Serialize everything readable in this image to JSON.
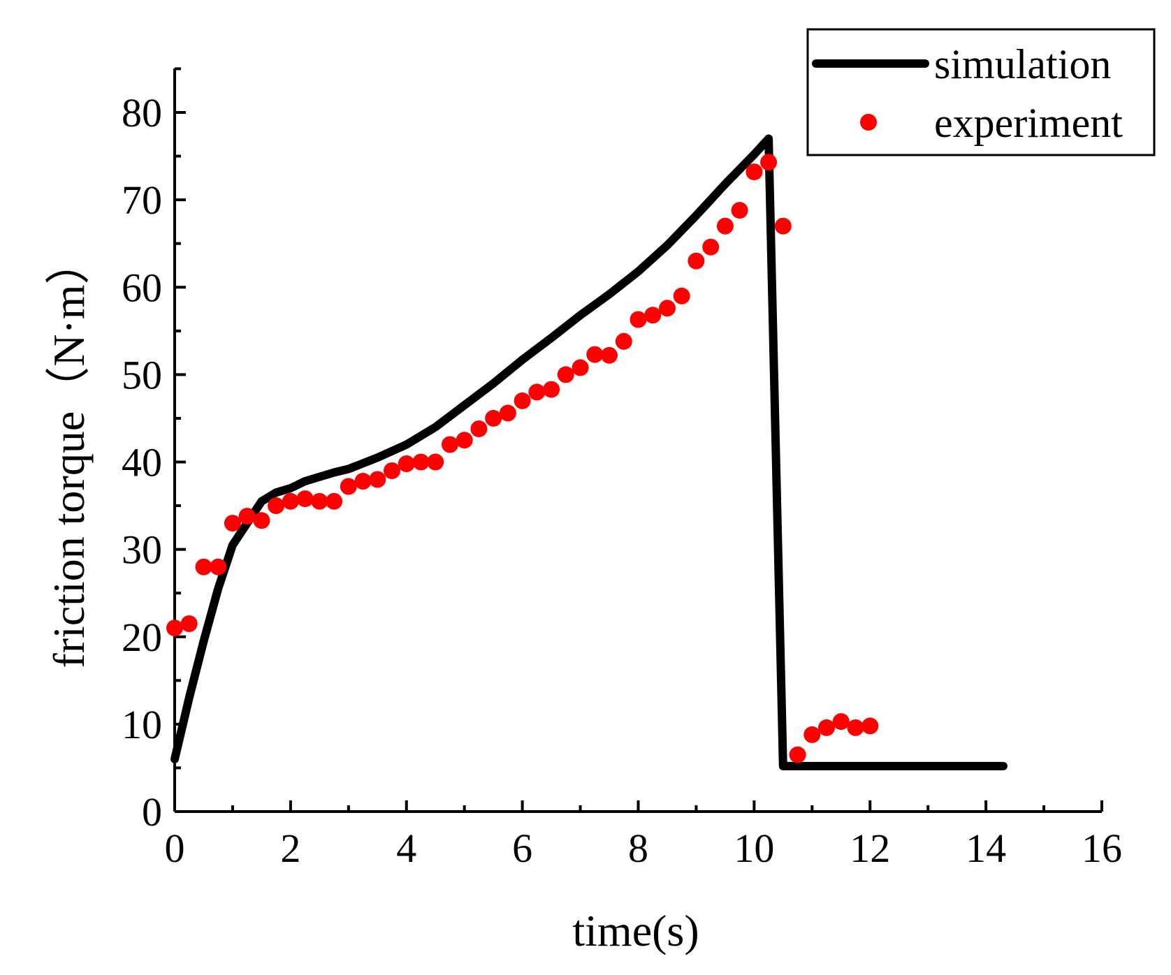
{
  "chart_data": {
    "type": "line",
    "title": "",
    "xlabel": "time(s)",
    "ylabel": "friction torque（N·m）",
    "xlim": [
      0,
      16
    ],
    "ylim": [
      0,
      85
    ],
    "xticks": [
      0,
      2,
      4,
      6,
      8,
      10,
      12,
      14,
      16
    ],
    "yticks": [
      0,
      10,
      20,
      30,
      40,
      50,
      60,
      70,
      80
    ],
    "legend_position": "top-right",
    "series": [
      {
        "name": "simulation",
        "style": "line",
        "color": "#000000",
        "x": [
          0,
          0.25,
          0.5,
          0.75,
          1.0,
          1.25,
          1.5,
          1.75,
          2.0,
          2.25,
          2.5,
          2.75,
          3.0,
          3.5,
          4.0,
          4.5,
          5.0,
          5.5,
          6.0,
          6.5,
          7.0,
          7.5,
          8.0,
          8.5,
          9.0,
          9.5,
          10.0,
          10.25,
          10.5,
          11.0,
          12.0,
          13.0,
          14.0,
          14.3
        ],
        "y": [
          6,
          13,
          19.5,
          25.5,
          30.5,
          33,
          35.5,
          36.5,
          37,
          37.8,
          38.3,
          38.8,
          39.2,
          40.5,
          42,
          44,
          46.5,
          49,
          51.7,
          54.2,
          56.8,
          59.2,
          61.8,
          64.8,
          68.2,
          71.8,
          75.2,
          77,
          5.2,
          5.2,
          5.2,
          5.2,
          5.2,
          5.2
        ]
      },
      {
        "name": "experiment",
        "style": "scatter",
        "color": "#ff0000",
        "x": [
          0,
          0.25,
          0.5,
          0.75,
          1.0,
          1.25,
          1.5,
          1.75,
          2.0,
          2.25,
          2.5,
          2.75,
          3.0,
          3.25,
          3.5,
          3.75,
          4.0,
          4.25,
          4.5,
          4.75,
          5.0,
          5.25,
          5.5,
          5.75,
          6.0,
          6.25,
          6.5,
          6.75,
          7.0,
          7.25,
          7.5,
          7.75,
          8.0,
          8.25,
          8.5,
          8.75,
          9.0,
          9.25,
          9.5,
          9.75,
          10.0,
          10.25,
          10.5,
          10.75,
          11.0,
          11.25,
          11.5,
          11.75,
          12.0
        ],
        "y": [
          21,
          21.5,
          28,
          28,
          33,
          33.8,
          33.3,
          35,
          35.5,
          35.8,
          35.5,
          35.5,
          37.2,
          37.8,
          38,
          39,
          39.8,
          40,
          40,
          42,
          42.5,
          43.8,
          45,
          45.6,
          47,
          48,
          48.3,
          50,
          50.8,
          52.3,
          52.2,
          53.8,
          56.3,
          56.8,
          57.6,
          59,
          63,
          64.6,
          67,
          68.8,
          73.2,
          74.3,
          67,
          6.5,
          8.8,
          9.6,
          10.3,
          9.6,
          9.8
        ]
      }
    ]
  }
}
